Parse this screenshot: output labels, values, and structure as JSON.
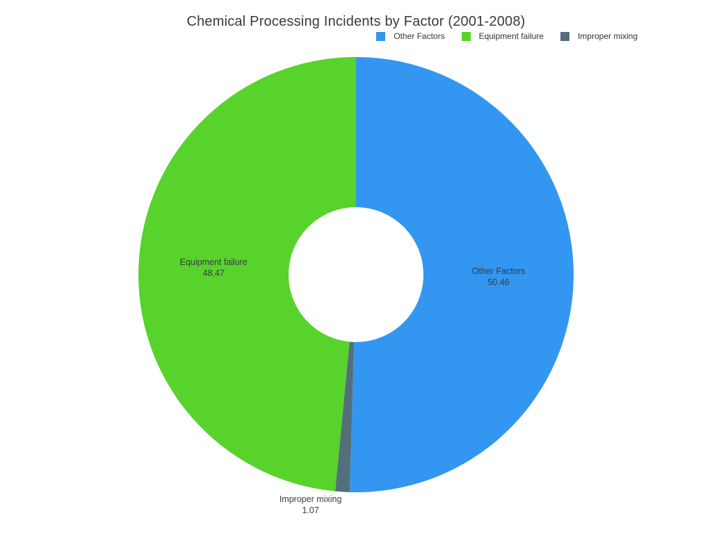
{
  "page": {
    "background": "#ffffff"
  },
  "chart_data": {
    "type": "pie",
    "subtype": "donut",
    "title": "Chemical Processing Incidents by Factor (2001-2008)",
    "slices": [
      {
        "label": "Other Factors",
        "value": 50.46,
        "color": "#3396f1",
        "label_position": "inside"
      },
      {
        "label": "Improper mixing",
        "value": 1.07,
        "color": "#52707c",
        "label_position": "outside"
      },
      {
        "label": "Equipment failure",
        "value": 48.47,
        "color": "#57d32b",
        "label_position": "inside"
      }
    ],
    "total": 100.0,
    "hole_ratio": 0.31,
    "rotation_deg": 0,
    "direction": "clockwise",
    "legend": {
      "position": "top-right",
      "orientation": "horizontal",
      "order": [
        "Other Factors",
        "Equipment failure",
        "Improper mixing"
      ]
    },
    "text_color": "#3b3b3b",
    "title_color": "#3a3a3a"
  }
}
